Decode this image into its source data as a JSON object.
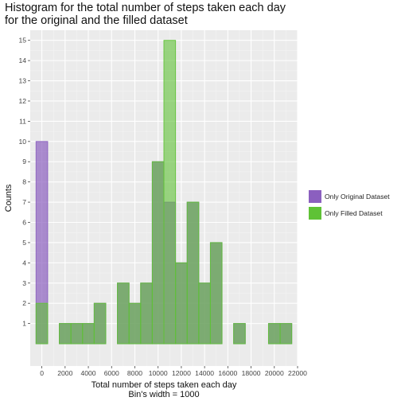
{
  "chart_data": {
    "type": "bar",
    "title": "Histogram for the total number of steps taken each day\nfor the original and the filled dataset",
    "xlabel": "Total number of steps taken each day",
    "xlabel_sub": "Bin's width = 1000",
    "ylabel": "Counts",
    "bin_width": 1000,
    "xlim": [
      -1000,
      22000
    ],
    "ylim": [
      -1.1,
      15.5
    ],
    "x_ticks": [
      0,
      2000,
      4000,
      6000,
      8000,
      10000,
      12000,
      14000,
      16000,
      18000,
      20000,
      22000
    ],
    "y_ticks": [
      1,
      2,
      3,
      4,
      5,
      6,
      7,
      8,
      9,
      10,
      11,
      12,
      13,
      14,
      15
    ],
    "bin_starts": [
      -500,
      500,
      1500,
      2500,
      3500,
      4500,
      5500,
      6500,
      7500,
      8500,
      9500,
      10500,
      11500,
      12500,
      13500,
      14500,
      15500,
      16500,
      17500,
      18500,
      19500,
      20500
    ],
    "grid": true,
    "legend_position": "right",
    "series": [
      {
        "name": "Only Original Dataset",
        "color": "#8b5fbf",
        "values": [
          10,
          0,
          1,
          1,
          1,
          2,
          0,
          3,
          2,
          3,
          9,
          7,
          4,
          7,
          3,
          5,
          0,
          1,
          0,
          0,
          1,
          1
        ]
      },
      {
        "name": "Only Filled Dataset",
        "color": "#5fc236",
        "values": [
          2,
          0,
          1,
          1,
          1,
          2,
          0,
          3,
          2,
          3,
          9,
          15,
          4,
          7,
          3,
          5,
          0,
          1,
          0,
          0,
          1,
          1
        ]
      }
    ]
  }
}
